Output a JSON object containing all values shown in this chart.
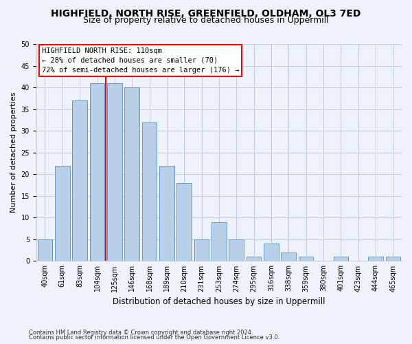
{
  "title": "HIGHFIELD, NORTH RISE, GREENFIELD, OLDHAM, OL3 7ED",
  "subtitle": "Size of property relative to detached houses in Uppermill",
  "xlabel": "Distribution of detached houses by size in Uppermill",
  "ylabel": "Number of detached properties",
  "categories": [
    "40sqm",
    "61sqm",
    "83sqm",
    "104sqm",
    "125sqm",
    "146sqm",
    "168sqm",
    "189sqm",
    "210sqm",
    "231sqm",
    "253sqm",
    "274sqm",
    "295sqm",
    "316sqm",
    "338sqm",
    "359sqm",
    "380sqm",
    "401sqm",
    "423sqm",
    "444sqm",
    "465sqm"
  ],
  "values": [
    5,
    22,
    37,
    41,
    41,
    40,
    32,
    22,
    18,
    5,
    9,
    5,
    1,
    4,
    2,
    1,
    0,
    1,
    0,
    1,
    1
  ],
  "bar_color": "#b8cfe8",
  "bar_edge_color": "#6699cc",
  "red_line_x": 3.5,
  "annotation_title": "HIGHFIELD NORTH RISE: 110sqm",
  "annotation_line1": "← 28% of detached houses are smaller (70)",
  "annotation_line2": "72% of semi-detached houses are larger (176) →",
  "ylim": [
    0,
    50
  ],
  "yticks": [
    0,
    5,
    10,
    15,
    20,
    25,
    30,
    35,
    40,
    45,
    50
  ],
  "footer1": "Contains HM Land Registry data © Crown copyright and database right 2024.",
  "footer2": "Contains public sector information licensed under the Open Government Licence v3.0.",
  "bg_color": "#eef2fa",
  "grid_color": "#c8d0e0",
  "title_fontsize": 10,
  "subtitle_fontsize": 9,
  "ylabel_fontsize": 8,
  "xlabel_fontsize": 8.5,
  "tick_fontsize": 7,
  "annot_fontsize": 7.5,
  "footer_fontsize": 6
}
